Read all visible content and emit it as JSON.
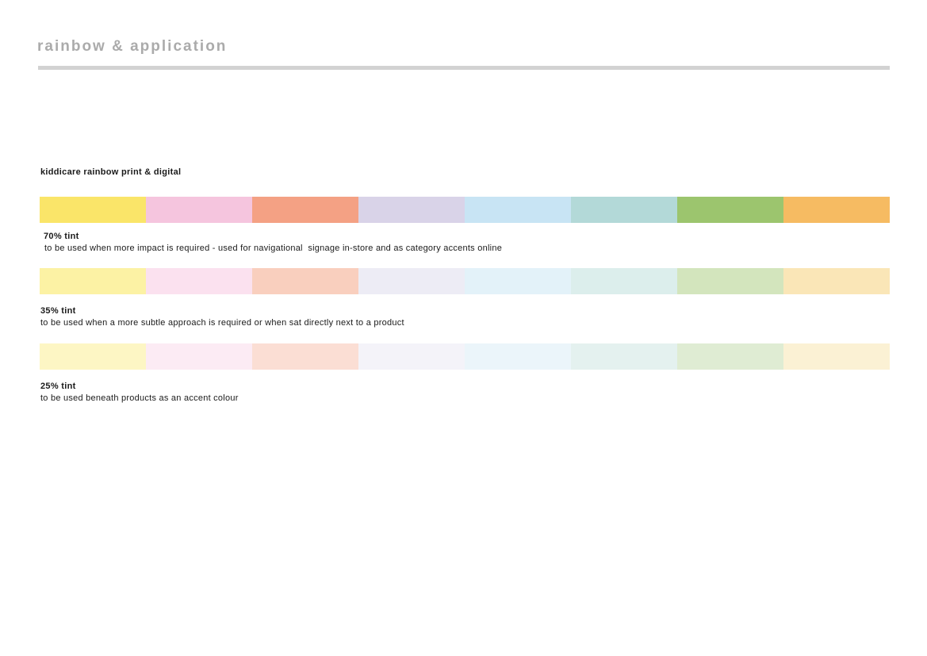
{
  "page": {
    "title": "rainbow & application",
    "section_heading": "kiddicare rainbow print & digital",
    "title_color": "#ABABAB",
    "rule_color": "#D2D2D2",
    "background_color": "#FFFFFF"
  },
  "rainbow": {
    "color_names": [
      "yellow",
      "pink",
      "salmon",
      "lilac",
      "blue",
      "aqua",
      "green",
      "orange"
    ],
    "rows": [
      {
        "id": "70",
        "label": "70% tint",
        "description": "to be used when more impact is required - used for navigational  signage in-store and as category accents online",
        "swatches": [
          "#FAE569",
          "#F5C5DE",
          "#F4A184",
          "#D9D3E8",
          "#C8E4F4",
          "#B3D9D8",
          "#9CC56E",
          "#F6BB62"
        ]
      },
      {
        "id": "35",
        "label": "35% tint",
        "description": "to be used when a more subtle approach is required or when sat directly next to a product",
        "swatches": [
          "#FCF2A4",
          "#FBE1EF",
          "#F9CFBE",
          "#EDECF5",
          "#E3F2F9",
          "#DCEEEC",
          "#D3E5BD",
          "#FAE6B7"
        ]
      },
      {
        "id": "25",
        "label": "25% tint",
        "description": "to be used beneath products as an accent colour",
        "swatches": [
          "#FDF6C4",
          "#FCEBF4",
          "#FBDED4",
          "#F4F3F9",
          "#EBF5FA",
          "#E4F1EF",
          "#DFECD3",
          "#FBF1D4"
        ]
      }
    ]
  }
}
